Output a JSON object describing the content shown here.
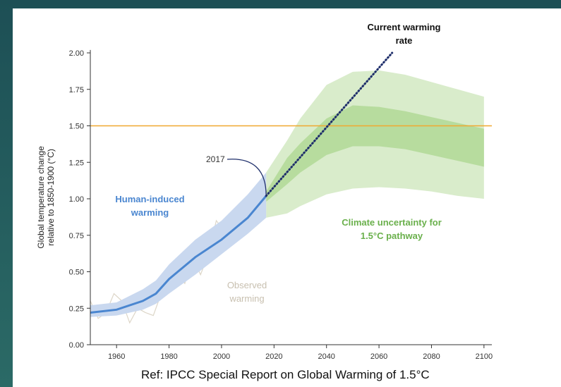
{
  "chart_data": {
    "type": "line",
    "ylabel": [
      "Global temperature change",
      "relative to 1850-1900 (°C)"
    ],
    "xlim": [
      1950,
      2103
    ],
    "ylim": [
      0,
      2.02
    ],
    "xticks": [
      1960,
      1980,
      2000,
      2020,
      2040,
      2060,
      2080,
      2100
    ],
    "yticks": [
      {
        "value": 0,
        "label": "0.00"
      },
      {
        "value": 0.25,
        "label": "0.25"
      },
      {
        "value": 0.5,
        "label": "0.50"
      },
      {
        "value": 0.75,
        "label": "0.75"
      },
      {
        "value": 1,
        "label": "1.00"
      },
      {
        "value": 1.25,
        "label": "1.25"
      },
      {
        "value": 1.5,
        "label": "1.50"
      },
      {
        "value": 1.75,
        "label": "1.75"
      },
      {
        "value": 2,
        "label": "2.00"
      }
    ],
    "hline": {
      "value": 1.5,
      "color": "#f0a830"
    },
    "series": [
      {
        "name": "Observed warming",
        "style": "noise",
        "color": "#ddd6c8",
        "x": [
          1950,
          1953,
          1956,
          1959,
          1962,
          1965,
          1968,
          1971,
          1974,
          1977,
          1980,
          1983,
          1986,
          1989,
          1992,
          1995,
          1998,
          2001,
          2004,
          2007,
          2010,
          2013,
          2016,
          2017
        ],
        "values": [
          0.3,
          0.18,
          0.22,
          0.35,
          0.3,
          0.15,
          0.25,
          0.22,
          0.2,
          0.35,
          0.45,
          0.5,
          0.42,
          0.6,
          0.48,
          0.62,
          0.85,
          0.78,
          0.85,
          0.9,
          0.95,
          0.92,
          1.15,
          1.05
        ]
      },
      {
        "name": "Human-induced warming",
        "style": "solid",
        "color": "#4a86d0",
        "band_color": "#c9d8ef",
        "x": [
          1950,
          1960,
          1970,
          1975,
          1980,
          1990,
          2000,
          2010,
          2017
        ],
        "values": [
          0.22,
          0.24,
          0.3,
          0.35,
          0.45,
          0.6,
          0.72,
          0.87,
          1.02
        ],
        "lower": [
          0.19,
          0.2,
          0.24,
          0.28,
          0.35,
          0.48,
          0.62,
          0.76,
          0.87
        ],
        "upper": [
          0.27,
          0.29,
          0.38,
          0.44,
          0.55,
          0.72,
          0.85,
          1.03,
          1.18
        ]
      },
      {
        "name": "Current warming rate",
        "style": "dotted",
        "color": "#1f2f6b",
        "x": [
          2017,
          2065
        ],
        "values": [
          1.02,
          2.0
        ]
      },
      {
        "name": "Climate uncertainty for 1.5°C pathway",
        "style": "bands",
        "bands": [
          {
            "color": "#d9eccb",
            "x": [
              2017,
              2025,
              2030,
              2040,
              2050,
              2060,
              2070,
              2080,
              2090,
              2100
            ],
            "lower": [
              0.87,
              0.9,
              0.95,
              1.03,
              1.07,
              1.08,
              1.07,
              1.05,
              1.02,
              1.0
            ],
            "upper": [
              1.18,
              1.4,
              1.55,
              1.78,
              1.87,
              1.88,
              1.85,
              1.8,
              1.75,
              1.7
            ]
          },
          {
            "color": "#b7dc9e",
            "x": [
              2017,
              2025,
              2030,
              2040,
              2050,
              2060,
              2070,
              2080,
              2090,
              2100
            ],
            "lower": [
              0.98,
              1.1,
              1.18,
              1.3,
              1.36,
              1.36,
              1.34,
              1.3,
              1.26,
              1.22
            ],
            "upper": [
              1.05,
              1.28,
              1.38,
              1.55,
              1.64,
              1.63,
              1.6,
              1.56,
              1.52,
              1.48
            ]
          }
        ]
      }
    ],
    "annotations": [
      {
        "text": "2017",
        "x": 2017,
        "y": 1.02
      }
    ],
    "footnote": "Ref: IPCC Special Report on Global Warming of 1.5°C"
  }
}
